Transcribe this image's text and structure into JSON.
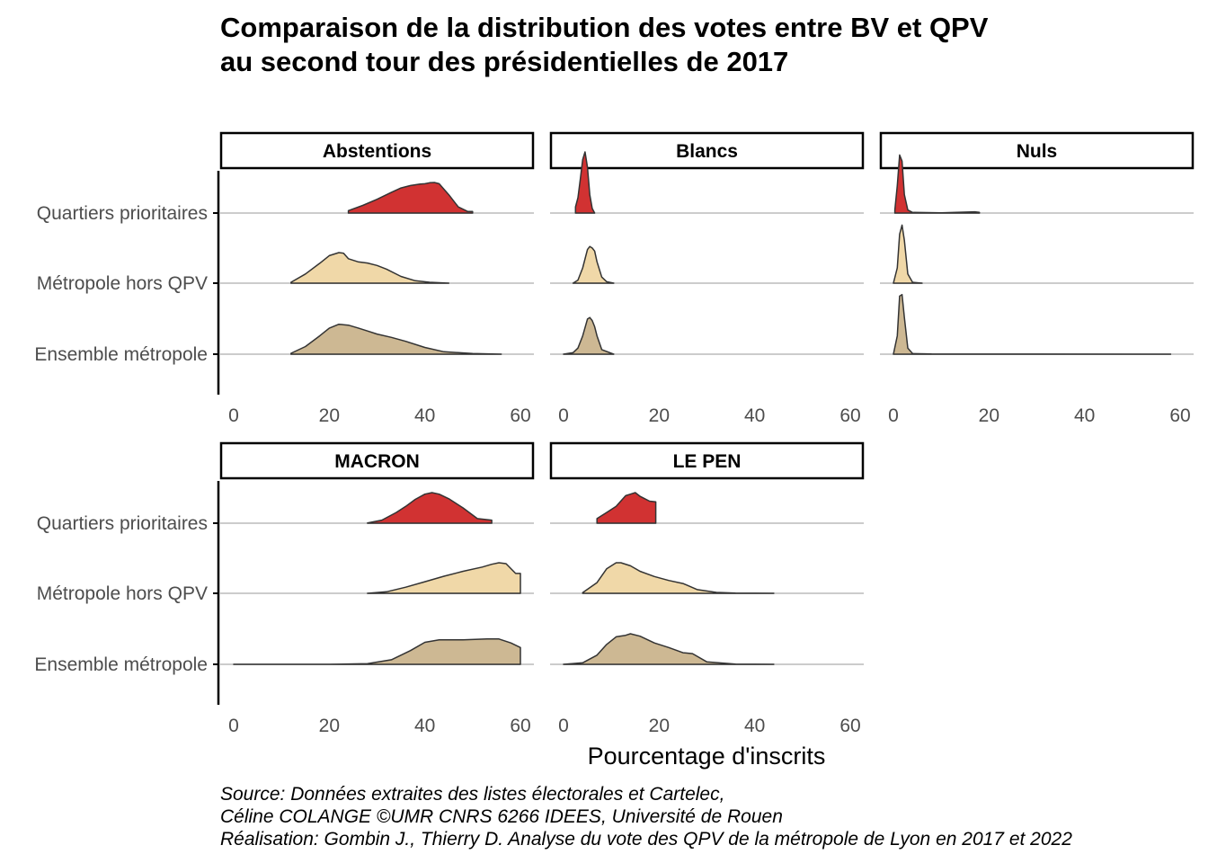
{
  "colors": {
    "qpv": "#d13232",
    "hors_qpv": "#f0d8a8",
    "ensemble": "#cdb893",
    "outline": "#333333",
    "baseline": "#cccccc",
    "axis": "#000000"
  },
  "chart_data": {
    "type": "ridgeline",
    "title_lines": [
      "Comparaison de la distribution des votes entre BV et QPV",
      "au second tour des présidentielles de 2017"
    ],
    "xlabel": "Pourcentage d'inscrits",
    "ylabel": "",
    "xlim": [
      0,
      60
    ],
    "x_ticks": [
      "0",
      "20",
      "40",
      "60"
    ],
    "categories": [
      "Quartiers prioritaires",
      "Métropole hors QPV",
      "Ensemble métropole"
    ],
    "grid": "horizontal baselines only",
    "panels": [
      {
        "label": "Abstentions",
        "series": [
          {
            "name": "Quartiers prioritaires",
            "color": "qpv",
            "x": [
              24,
              27,
              30,
              33,
              35,
              37,
              39,
              40,
              41,
              42,
              43,
              45,
              47,
              49,
              50
            ],
            "density": [
              0.08,
              0.25,
              0.45,
              0.68,
              0.82,
              0.9,
              0.95,
              0.96,
              0.99,
              1.0,
              0.96,
              0.6,
              0.2,
              0.05,
              0.05
            ]
          },
          {
            "name": "Métropole hors QPV",
            "color": "hors_qpv",
            "x": [
              12,
              15,
              18,
              20,
              22,
              23,
              24,
              26,
              28,
              30,
              32,
              35,
              38,
              41,
              45
            ],
            "density": [
              0.03,
              0.3,
              0.65,
              0.9,
              1.0,
              0.98,
              0.8,
              0.7,
              0.66,
              0.58,
              0.46,
              0.22,
              0.08,
              0.03,
              0.0
            ]
          },
          {
            "name": "Ensemble métropole",
            "color": "ensemble",
            "x": [
              12,
              15,
              18,
              20,
              22,
              24,
              26,
              28,
              30,
              33,
              36,
              40,
              44,
              50,
              56
            ],
            "density": [
              0.03,
              0.25,
              0.6,
              0.85,
              0.98,
              0.95,
              0.86,
              0.76,
              0.66,
              0.55,
              0.42,
              0.22,
              0.08,
              0.02,
              0.0
            ]
          }
        ]
      },
      {
        "label": "Blancs",
        "series": [
          {
            "name": "Quartiers prioritaires",
            "color": "qpv",
            "x": [
              2.5,
              3.0,
              3.5,
              4.0,
              4.5,
              5.0,
              5.5,
              6.0,
              6.5
            ],
            "density": [
              0.2,
              0.5,
              1.1,
              1.75,
              2.0,
              1.5,
              0.6,
              0.15,
              0.0
            ]
          },
          {
            "name": "Métropole hors QPV",
            "color": "hors_qpv",
            "x": [
              2.0,
              3.0,
              4.0,
              5.0,
              5.5,
              6.0,
              6.5,
              7.0,
              8.0,
              9.0,
              10.5
            ],
            "density": [
              0.0,
              0.1,
              0.5,
              1.1,
              1.2,
              1.15,
              1.05,
              0.7,
              0.2,
              0.05,
              0.0
            ]
          },
          {
            "name": "Ensemble métropole",
            "color": "ensemble",
            "x": [
              0.0,
              2.0,
              3.0,
              4.0,
              5.0,
              5.5,
              6.0,
              6.5,
              7.0,
              8.0,
              10.5
            ],
            "density": [
              0.0,
              0.05,
              0.2,
              0.6,
              1.15,
              1.2,
              1.1,
              0.9,
              0.6,
              0.15,
              0.0
            ]
          }
        ]
      },
      {
        "label": "Nuls",
        "series": [
          {
            "name": "Quartiers prioritaires",
            "color": "qpv",
            "x": [
              0.3,
              0.8,
              1.3,
              1.8,
              2.3,
              3.0,
              4.0,
              10.0,
              17.0,
              18.0
            ],
            "density": [
              0.1,
              0.9,
              1.9,
              1.7,
              0.6,
              0.1,
              0.02,
              0.01,
              0.04,
              0.02
            ]
          },
          {
            "name": "Métropole hors QPV",
            "color": "hors_qpv",
            "x": [
              0.0,
              0.8,
              1.3,
              1.8,
              2.3,
              3.0,
              4.0,
              6.0
            ],
            "density": [
              0.0,
              0.5,
              1.6,
              1.9,
              1.4,
              0.3,
              0.03,
              0.0
            ]
          },
          {
            "name": "Ensemble métropole",
            "color": "ensemble",
            "x": [
              0.0,
              0.8,
              1.3,
              1.8,
              2.3,
              3.0,
              4.0,
              8.0,
              30.0,
              58.0
            ],
            "density": [
              0.0,
              0.6,
              1.9,
              1.95,
              1.2,
              0.2,
              0.02,
              0.005,
              0.002,
              0.0
            ]
          }
        ]
      },
      {
        "label": "MACRON",
        "series": [
          {
            "name": "Quartiers prioritaires",
            "color": "qpv",
            "x": [
              28,
              31,
              34,
              36,
              38,
              40,
              41.5,
              43,
              45,
              48,
              51,
              54
            ],
            "density": [
              0.01,
              0.1,
              0.35,
              0.55,
              0.78,
              0.95,
              1.0,
              0.95,
              0.8,
              0.5,
              0.15,
              0.1
            ]
          },
          {
            "name": "Métropole hors QPV",
            "color": "hors_qpv",
            "x": [
              28,
              32,
              36,
              40,
              44,
              48,
              52,
              54,
              55.5,
              57,
              59,
              60
            ],
            "density": [
              0.0,
              0.05,
              0.2,
              0.38,
              0.56,
              0.72,
              0.86,
              0.95,
              1.0,
              0.97,
              0.65,
              0.65
            ]
          },
          {
            "name": "Ensemble métropole",
            "color": "ensemble",
            "x": [
              0,
              20,
              28,
              33,
              37,
              40,
              43,
              48,
              53,
              55.5,
              58,
              60
            ],
            "density": [
              0.0,
              0.0,
              0.02,
              0.15,
              0.45,
              0.72,
              0.8,
              0.8,
              0.83,
              0.83,
              0.7,
              0.55
            ]
          }
        ]
      },
      {
        "label": "LE PEN",
        "series": [
          {
            "name": "Quartiers prioritaires",
            "color": "qpv",
            "x": [
              7,
              9,
              11,
              13,
              14,
              15,
              16,
              17,
              18,
              19.3
            ],
            "density": [
              0.15,
              0.35,
              0.55,
              0.9,
              0.95,
              1.0,
              0.88,
              0.8,
              0.72,
              0.7
            ]
          },
          {
            "name": "Métropole hors QPV",
            "color": "hors_qpv",
            "x": [
              4,
              7,
              9,
              11,
              12,
              14,
              16,
              19,
              22,
              25,
              28,
              32,
              36,
              44
            ],
            "density": [
              0.02,
              0.35,
              0.8,
              1.0,
              1.0,
              0.9,
              0.72,
              0.55,
              0.42,
              0.32,
              0.12,
              0.03,
              0.01,
              0.0
            ]
          },
          {
            "name": "Ensemble métropole",
            "color": "ensemble",
            "x": [
              0,
              4,
              7,
              9,
              11,
              13,
              14,
              16,
              19,
              22,
              25,
              27,
              30,
              36,
              44
            ],
            "density": [
              0.0,
              0.05,
              0.3,
              0.65,
              0.9,
              0.95,
              1.0,
              0.92,
              0.7,
              0.55,
              0.38,
              0.35,
              0.08,
              0.01,
              0.0
            ]
          }
        ]
      }
    ]
  },
  "caption_lines": [
    "Source: Données extraites des listes électorales et Cartelec,",
    "Céline COLANGE ©UMR CNRS 6266 IDEES, Université de Rouen",
    "Réalisation: Gombin J., Thierry D. Analyse du vote des QPV de la métropole de Lyon en 2017 et 2022"
  ]
}
